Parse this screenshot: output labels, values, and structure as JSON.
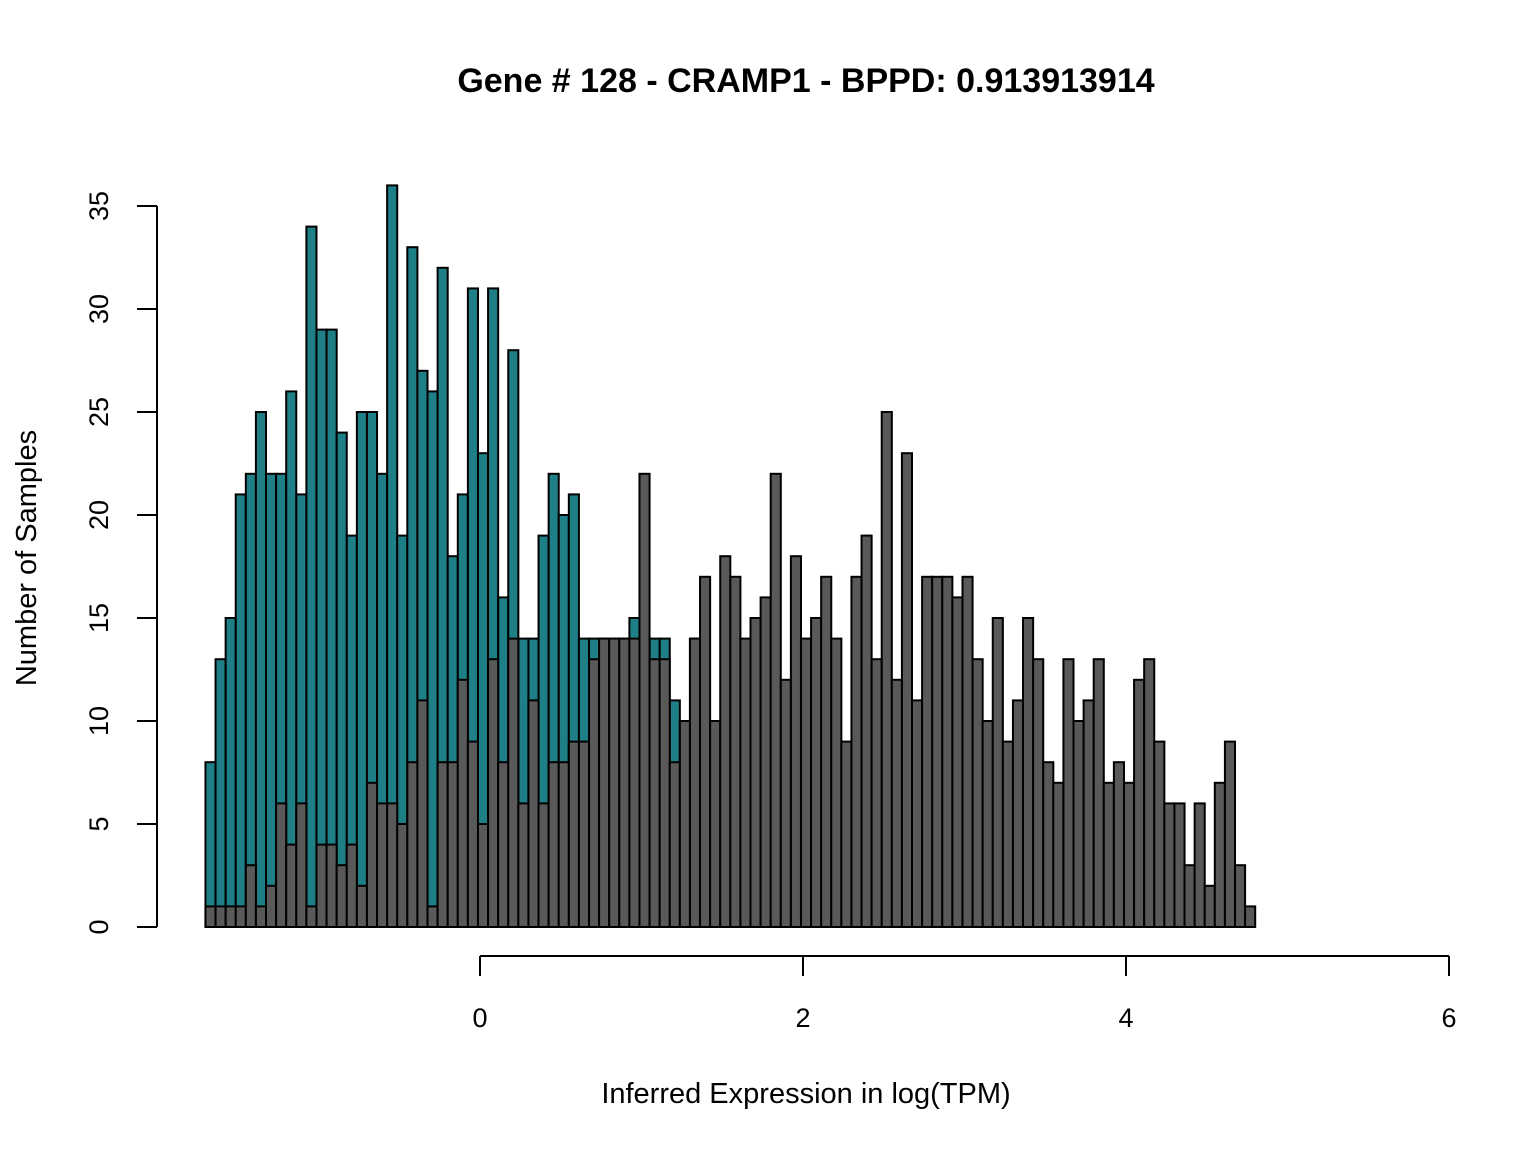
{
  "colors": {
    "teal": "#1F7F87",
    "gray": "#595959",
    "stroke": "#000000",
    "background": "#FFFFFF"
  },
  "chart_data": {
    "type": "bar",
    "title": "Gene # 128 - CRAMP1 - BPPD: 0.913913914",
    "xlabel": "Inferred Expression in log(TPM)",
    "ylabel": "Number of Samples",
    "xlim": [
      -1.7,
      6
    ],
    "ylim": [
      0,
      36
    ],
    "x_ticks": [
      0,
      2,
      4,
      6
    ],
    "y_ticks": [
      0,
      5,
      10,
      15,
      20,
      25,
      30,
      35
    ],
    "bin_start": -1.7,
    "bin_width": 0.0625,
    "grid": false,
    "legend": "none",
    "series": [
      {
        "color": "teal",
        "values": [
          8,
          13,
          15,
          21,
          22,
          25,
          22,
          22,
          26,
          21,
          34,
          29,
          29,
          24,
          19,
          25,
          25,
          22,
          36,
          19,
          33,
          27,
          26,
          32,
          18,
          21,
          31,
          23,
          31,
          16,
          28,
          14,
          14,
          19,
          22,
          20,
          21,
          14,
          14,
          14,
          14,
          14,
          15,
          14,
          14,
          14,
          11,
          10,
          14,
          4,
          4,
          2,
          3,
          3,
          1,
          2,
          2,
          1,
          1,
          1,
          0,
          1,
          1,
          0,
          0,
          0,
          0,
          1
        ]
      },
      {
        "color": "gray",
        "values": [
          1,
          1,
          1,
          1,
          3,
          1,
          2,
          6,
          4,
          6,
          1,
          4,
          4,
          3,
          4,
          2,
          7,
          6,
          6,
          5,
          8,
          11,
          1,
          8,
          8,
          12,
          9,
          5,
          13,
          8,
          14,
          6,
          11,
          6,
          8,
          8,
          9,
          9,
          13,
          14,
          14,
          14,
          14,
          22,
          13,
          13,
          8,
          10,
          14,
          17,
          10,
          18,
          17,
          14,
          15,
          16,
          22,
          12,
          18,
          14,
          15,
          17,
          14,
          9,
          17,
          19,
          13,
          25,
          12,
          23,
          11,
          17,
          17,
          17,
          16,
          17,
          13,
          10,
          15,
          9,
          11,
          15,
          13,
          8,
          7,
          13,
          10,
          11,
          13,
          7,
          8,
          7,
          12,
          13,
          9,
          6,
          6,
          3,
          6,
          2,
          7,
          9,
          3,
          1
        ]
      }
    ]
  }
}
